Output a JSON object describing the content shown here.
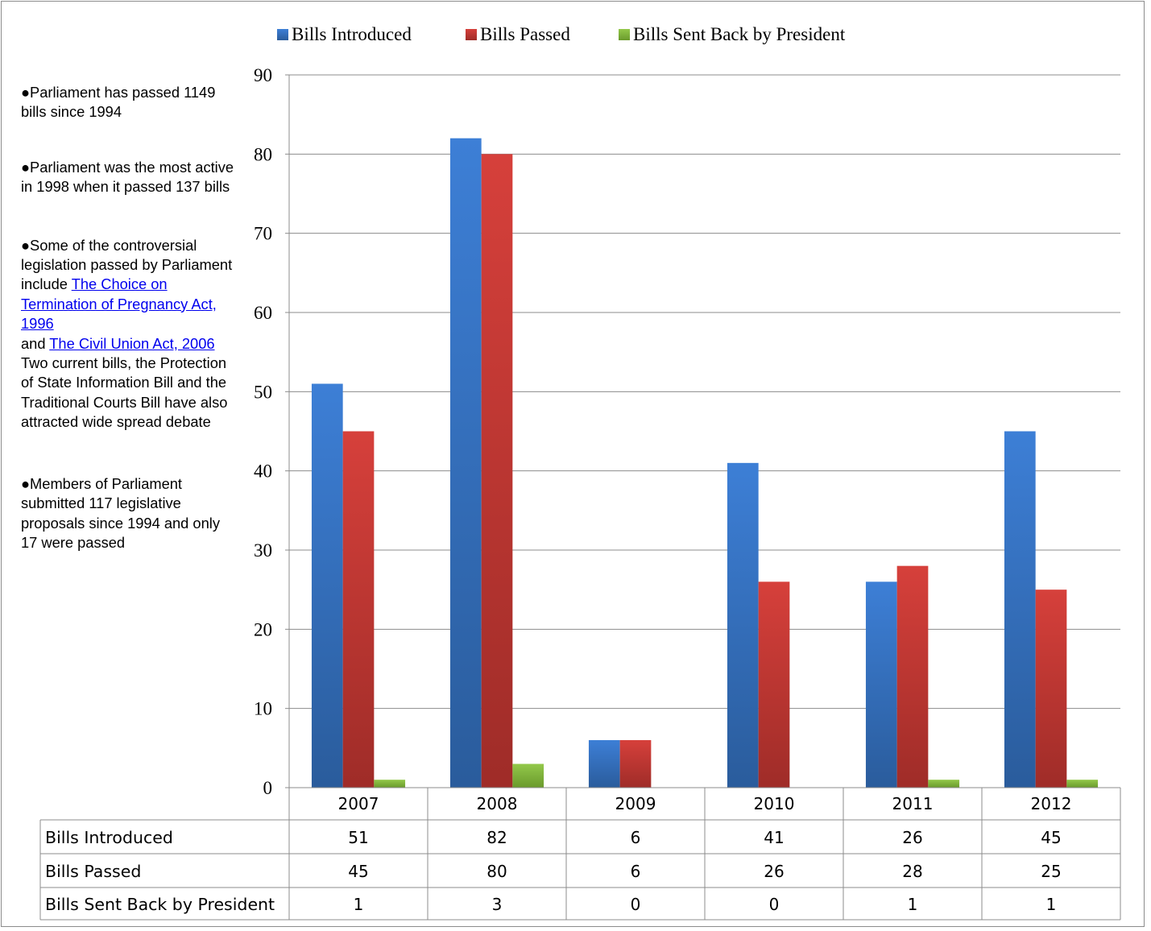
{
  "chart_data": {
    "type": "bar",
    "categories": [
      "2007",
      "2008",
      "2009",
      "2010",
      "2011",
      "2012"
    ],
    "series": [
      {
        "name": "Bills Introduced",
        "values": [
          51,
          82,
          6,
          41,
          26,
          45
        ],
        "color": "#3b7dd8"
      },
      {
        "name": "Bills Passed",
        "values": [
          45,
          80,
          6,
          26,
          28,
          25
        ],
        "color": "#d23f3a"
      },
      {
        "name": "Bills Sent Back by President",
        "values": [
          1,
          3,
          0,
          0,
          1,
          1
        ],
        "color": "#8ec63f"
      }
    ],
    "ylim": [
      0,
      90
    ],
    "yticks": [
      0,
      10,
      20,
      30,
      40,
      50,
      60,
      70,
      80,
      90
    ],
    "grid": true,
    "legend": "top",
    "data_table": true
  },
  "notes": {
    "n1": "●Parliament has passed 1149 bills since 1994",
    "n2": "●Parliament was the most active in 1998 when it passed 137 bills",
    "n3_prefix": "●Some of the controversial legislation passed by Parliament include ",
    "n3_link1": "The Choice on Termination of Pregnancy Act, 1996",
    "n3_and": "and ",
    "n3_link2": "The Civil Union Act, 2006",
    "n3_suffix": "Two current bills, the Protection of State Information Bill and the Traditional Courts Bill have also attracted wide spread debate",
    "n4": "●Members of Parliament submitted 117 legislative proposals since 1994 and only 17 were passed"
  }
}
